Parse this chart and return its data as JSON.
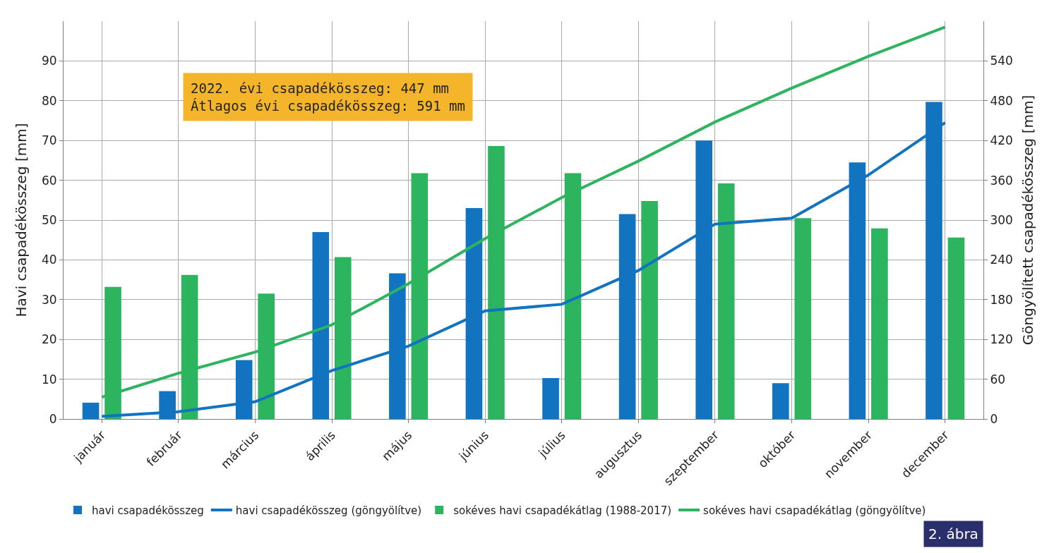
{
  "chart_data": {
    "type": "bar",
    "categories": [
      "január",
      "február",
      "március",
      "április",
      "május",
      "június",
      "július",
      "augusztus",
      "szeptember",
      "október",
      "november",
      "december"
    ],
    "series": [
      {
        "name": "havi csapadékösszeg",
        "color": "#1273c0",
        "values": [
          4.1,
          7,
          14.8,
          47,
          36.6,
          53,
          10.3,
          51.5,
          70,
          9,
          64.5,
          79.7
        ]
      },
      {
        "name": "havi csapadékösszeg (göngyölítve)",
        "color": "#1273c0",
        "type": "line",
        "axis": "y2",
        "values": [
          4,
          11,
          26,
          73,
          110,
          163,
          173,
          224,
          294,
          303,
          368,
          447
        ]
      },
      {
        "name": "sokéves havi csapadékátlag (1988-2017)",
        "color": "#2db45f",
        "values": [
          33.2,
          36.2,
          31.5,
          40.7,
          61.8,
          68.6,
          61.8,
          54.8,
          59.2,
          50.5,
          47.9,
          45.6
        ]
      },
      {
        "name": "sokéves havi csapadékátlag (göngyölítve)",
        "color": "#2db45f",
        "type": "line",
        "axis": "y2",
        "values": [
          33,
          69,
          101,
          142,
          204,
          272,
          334,
          389,
          448,
          499,
          547,
          591
        ]
      }
    ],
    "ylabel": "Havi csapadékösszeg [mm]",
    "y2label": "Göngyölített csapadékösszeg [mm]",
    "ylim": [
      0,
      100
    ],
    "yticks": [
      0,
      10,
      20,
      30,
      40,
      50,
      60,
      70,
      80,
      90
    ],
    "y2lim": [
      0,
      600
    ],
    "y2ticks": [
      0,
      60,
      120,
      180,
      240,
      300,
      360,
      420,
      480,
      540
    ],
    "annotations": [
      "2022. évi csapadékösszeg: 447 mm\nÁtlagos évi csapadékösszeg: 591 mm",
      "2. ábra"
    ],
    "grid": true,
    "legend": "bottom",
    "marker": "none",
    "line_style": "solid"
  }
}
